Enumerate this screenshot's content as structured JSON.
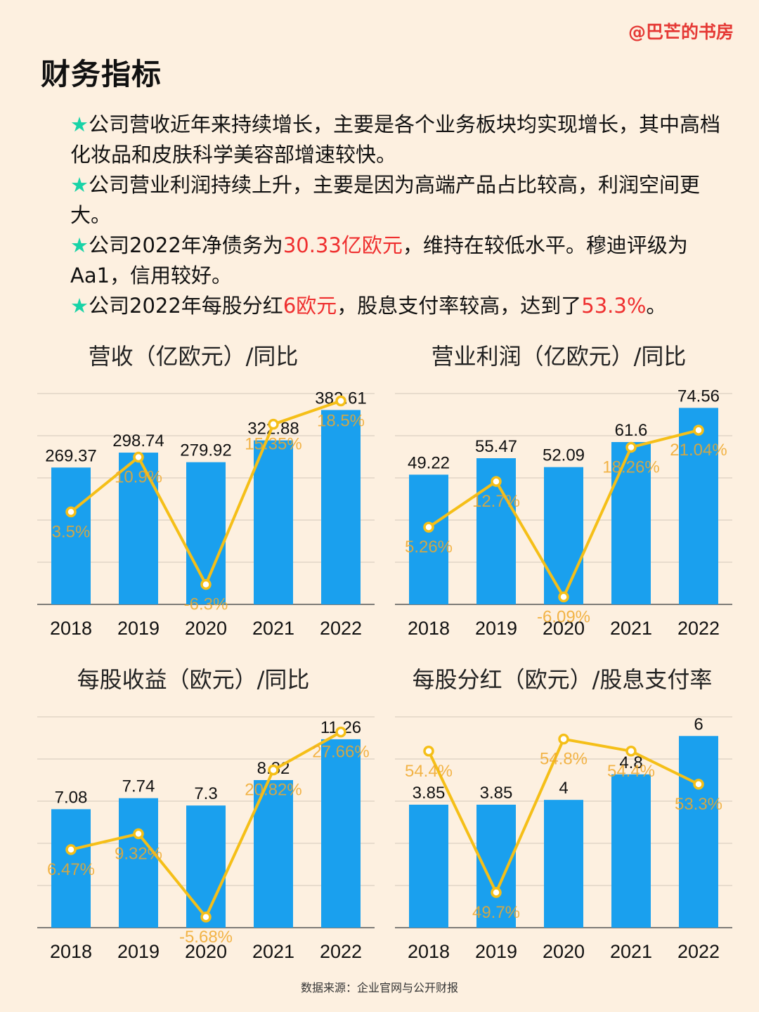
{
  "watermark": "@巴芒的书房",
  "title": "财务指标",
  "bullets": [
    [
      {
        "t": "公司营收近年来持续增长，主要是各个业务板块均实现增长，其中高档化妆品和皮肤科学美容部增速较快。"
      }
    ],
    [
      {
        "t": "公司营业利润持续上升，主要是因为高端产品占比较高，利润空间更大。"
      }
    ],
    [
      {
        "t": "公司2022年净债务为"
      },
      {
        "t": "30.33亿欧元",
        "hl": true
      },
      {
        "t": "，维持在较低水平。穆迪评级为Aa1，信用较好。"
      }
    ],
    [
      {
        "t": "公司2022年每股分红"
      },
      {
        "t": "6欧元",
        "hl": true
      },
      {
        "t": "，股息支付率较高，达到了"
      },
      {
        "t": "53.3%",
        "hl": true
      },
      {
        "t": "。"
      }
    ]
  ],
  "source": "数据来源：企业官网与公开财报",
  "colors": {
    "bar": "#1aa0ee",
    "line": "#f5bf18",
    "line_label": "#f0a82a",
    "accent": "#ef2f2f",
    "star": "#19d3a7"
  },
  "chart_data": [
    {
      "type": "bar+line",
      "title": "营收（亿欧元）/同比",
      "categories": [
        "2018",
        "2019",
        "2020",
        "2021",
        "2022"
      ],
      "bar_values": [
        269.37,
        298.74,
        279.92,
        322.88,
        382.61
      ],
      "bar_labels": [
        "269.37",
        "298.74",
        "279.92",
        "322.88",
        "382.61"
      ],
      "line_values": [
        3.5,
        10.9,
        -6.3,
        15.35,
        18.5
      ],
      "line_labels": [
        "3.5%",
        "10.9%",
        "-6.3%",
        "15.35%",
        "18.5%"
      ],
      "bar_range": [
        0,
        415
      ],
      "line_range": [
        -9,
        19.5
      ],
      "grid": true
    },
    {
      "type": "bar+line",
      "title": "营业利润（亿欧元）/同比",
      "categories": [
        "2018",
        "2019",
        "2020",
        "2021",
        "2022"
      ],
      "bar_values": [
        49.22,
        55.47,
        52.09,
        61.6,
        74.56
      ],
      "bar_labels": [
        "49.22",
        "55.47",
        "52.09",
        "61.6",
        "74.56"
      ],
      "line_values": [
        5.26,
        12.7,
        -6.09,
        18.26,
        21.04
      ],
      "line_labels": [
        "5.26%",
        "12.7%",
        "-6.09%",
        "18.26%",
        "21.04%"
      ],
      "bar_range": [
        0,
        80
      ],
      "line_range": [
        -7.3,
        27
      ],
      "grid": true
    },
    {
      "type": "bar+line",
      "title": "每股收益（欧元）/同比",
      "categories": [
        "2018",
        "2019",
        "2020",
        "2021",
        "2022"
      ],
      "bar_values": [
        7.08,
        7.74,
        7.3,
        8.82,
        11.26
      ],
      "bar_labels": [
        "7.08",
        "7.74",
        "7.3",
        "8.82",
        "11.26"
      ],
      "line_values": [
        6.47,
        9.32,
        -5.68,
        20.82,
        27.66
      ],
      "line_labels": [
        "6.47%",
        "9.32%",
        "-5.68%",
        "20.82%",
        "27.66%"
      ],
      "bar_range": [
        0,
        12.6
      ],
      "line_range": [
        -7.6,
        30.4
      ],
      "grid": true
    },
    {
      "type": "bar+line",
      "title": "每股分红（欧元）/股息支付率",
      "categories": [
        "2018",
        "2019",
        "2020",
        "2021",
        "2022"
      ],
      "bar_values": [
        3.85,
        3.85,
        4,
        4.8,
        6
      ],
      "bar_labels": [
        "3.85",
        "3.85",
        "4",
        "4.8",
        "6"
      ],
      "line_values": [
        54.4,
        49.7,
        54.8,
        54.4,
        53.3
      ],
      "line_labels": [
        "54.4%",
        "49.7%",
        "54.8%",
        "54.4%",
        "53.3%"
      ],
      "bar_range": [
        0,
        6.6
      ],
      "line_range": [
        48.53,
        55.54
      ],
      "grid": true
    }
  ]
}
